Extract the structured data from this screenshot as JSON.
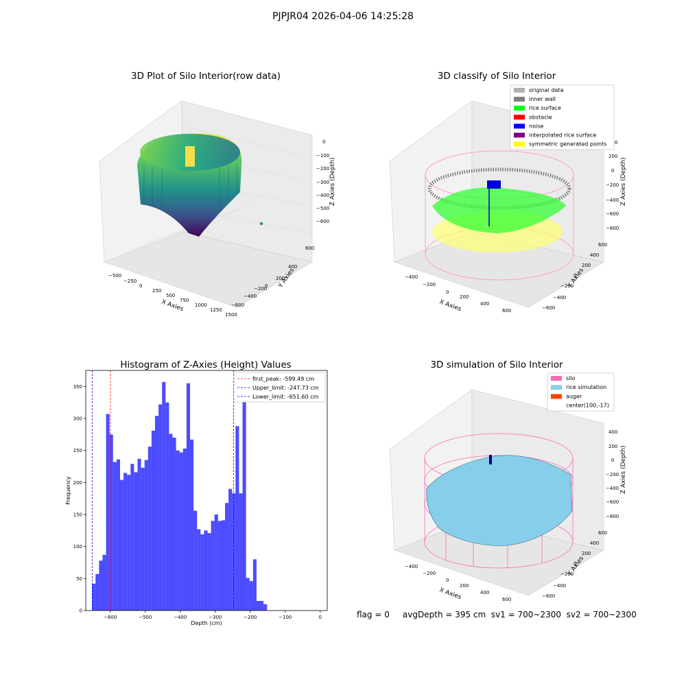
{
  "suptitle": "PJPJR04 2026-04-06 14:25:28",
  "panels": {
    "raw": {
      "title": "3D Plot of Silo Interior(row data)",
      "xlabel": "X Axies",
      "ylabel": "Y Axies",
      "zlabel": "Z Axies (Depth)",
      "xticks": [
        "−500",
        "−250",
        "0",
        "250",
        "500",
        "750",
        "1000",
        "1250",
        "1500"
      ],
      "yticks": [
        "600",
        "400",
        "200",
        "0",
        "−200",
        "−400",
        "−600"
      ],
      "zticks": [
        "0",
        "−100",
        "−200",
        "−300",
        "−400",
        "−500",
        "−600"
      ]
    },
    "classify": {
      "title": "3D classify of Silo Interior",
      "xlabel": "X Axies",
      "ylabel": "Y Axies",
      "zlabel": "Z Axies (Depth)",
      "xticks": [
        "−400",
        "−200",
        "0",
        "200",
        "400",
        "600"
      ],
      "yticks": [
        "600",
        "400",
        "200",
        "0",
        "−200",
        "−400",
        "−600"
      ],
      "zticks": [
        "400",
        "200",
        "0",
        "−200",
        "−400",
        "−600",
        "−800"
      ],
      "legend": [
        {
          "label": "original data",
          "color": "#b0b0b0"
        },
        {
          "label": "inner wall",
          "color": "#808080"
        },
        {
          "label": "rice surface",
          "color": "#00ff00"
        },
        {
          "label": "obstacle",
          "color": "#ff0000"
        },
        {
          "label": "noise",
          "color": "#0000ff"
        },
        {
          "label": "interpolated rice surface",
          "color": "#800080"
        },
        {
          "label": "symmetric generated points",
          "color": "#ffff00"
        }
      ]
    },
    "simulation": {
      "title": "3D simulation of Silo Interior",
      "xlabel": "X Axies",
      "ylabel": "Y Axies",
      "zlabel": "Z Axies (Depth)",
      "xticks": [
        "−400",
        "−200",
        "0",
        "200",
        "400",
        "600"
      ],
      "yticks": [
        "600",
        "400",
        "200",
        "0",
        "−200",
        "−400",
        "−600"
      ],
      "zticks": [
        "400",
        "200",
        "0",
        "−200",
        "−400",
        "−600",
        "−800"
      ],
      "legend": [
        {
          "label": "silo",
          "color": "#ff69b4"
        },
        {
          "label": "rice simulation",
          "color": "#87ceeb"
        },
        {
          "label": "auger",
          "color": "#ff4500"
        },
        {
          "label": "center(100,-17)",
          "color": ""
        }
      ]
    }
  },
  "chart_data": {
    "type": "bar",
    "title": "Histogram of Z-Axies (Height) Values",
    "xlabel": "Depth (cm)",
    "ylabel": "Frequency",
    "xlim": [
      -670,
      20
    ],
    "ylim": [
      0,
      375
    ],
    "xticks": [
      -600,
      -500,
      -400,
      -300,
      -200,
      -100,
      0
    ],
    "yticks": [
      0,
      50,
      100,
      150,
      200,
      250,
      300,
      350
    ],
    "bin_start": -652,
    "bin_width": 10,
    "values": [
      42,
      57,
      78,
      87,
      307,
      275,
      232,
      236,
      204,
      215,
      212,
      229,
      216,
      237,
      223,
      235,
      256,
      281,
      304,
      322,
      357,
      325,
      276,
      270,
      250,
      247,
      253,
      355,
      267,
      156,
      127,
      119,
      125,
      121,
      140,
      150,
      140,
      141,
      168,
      190,
      183,
      288,
      183,
      369,
      51,
      46,
      80,
      15,
      15,
      10
    ],
    "bar_color": "#0000ff",
    "lines": [
      {
        "label": "first_peak: -599.49 cm",
        "x": -599.49,
        "color": "#ff0000"
      },
      {
        "label": "Upper_limit: -247.73 cm",
        "x": -247.73,
        "color": "#0000ff"
      },
      {
        "label": "Lower_limit: -651.60 cm",
        "x": -651.6,
        "color": "#0000ff"
      }
    ],
    "legend_position": "top-right",
    "grid": false
  },
  "footer": "flag = 0     avgDepth = 395 cm  sv1 = 700~2300  sv2 = 700~2300"
}
